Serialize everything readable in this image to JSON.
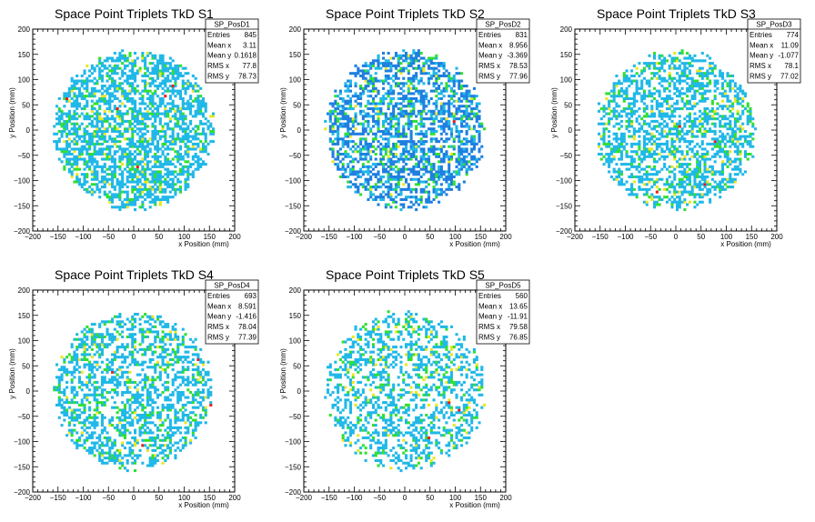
{
  "palette": {
    "light_blue": "#20b8e8",
    "blue": "#1f7fe0",
    "green": "#30e030",
    "yellow": "#e8e820",
    "red": "#f01818"
  },
  "chart_data": [
    {
      "type": "heatmap",
      "title": "Space Point Triplets TkD S1",
      "xlabel": "x Position (mm)",
      "ylabel": "y Position (mm)",
      "xlim": [
        -200,
        200
      ],
      "ylim": [
        -200,
        200
      ],
      "xticks": [
        -200,
        -150,
        -100,
        -50,
        0,
        50,
        100,
        150,
        200
      ],
      "yticks": [
        -200,
        -150,
        -100,
        -50,
        0,
        50,
        100,
        150,
        200
      ],
      "stats": {
        "name": "SP_PosD1",
        "rows": [
          [
            "Entries",
            "845"
          ],
          [
            "Mean x",
            "3.11"
          ],
          [
            "Mean y",
            "0.1618"
          ],
          [
            "RMS x",
            "77.8"
          ],
          [
            "RMS y",
            "78.73"
          ]
        ]
      },
      "hot_bins": [
        [
          -135,
          60
        ],
        [
          -35,
          40
        ],
        [
          60,
          65
        ],
        [
          75,
          85
        ],
        [
          5,
          -75
        ]
      ],
      "seed": 11
    },
    {
      "type": "heatmap",
      "title": "Space Point Triplets TkD S2",
      "xlabel": "x Position (mm)",
      "ylabel": "y Position (mm)",
      "xlim": [
        -200,
        200
      ],
      "ylim": [
        -200,
        200
      ],
      "xticks": [
        -200,
        -150,
        -100,
        -50,
        0,
        50,
        100,
        150,
        200
      ],
      "yticks": [
        -200,
        -150,
        -100,
        -50,
        0,
        50,
        100,
        150,
        200
      ],
      "stats": {
        "name": "SP_PosD2",
        "rows": [
          [
            "Entries",
            "831"
          ],
          [
            "Mean x",
            "8.956"
          ],
          [
            "Mean y",
            "-3.369"
          ],
          [
            "RMS x",
            "78.53"
          ],
          [
            "RMS y",
            "77.96"
          ]
        ]
      },
      "hot_bins": [
        [
          115,
          100
        ],
        [
          95,
          15
        ]
      ],
      "seed": 23
    },
    {
      "type": "heatmap",
      "title": "Space Point Triplets TkD S3",
      "xlabel": "x Position (mm)",
      "ylabel": "y Position (mm)",
      "xlim": [
        -200,
        200
      ],
      "ylim": [
        -200,
        200
      ],
      "xticks": [
        -200,
        -150,
        -100,
        -50,
        0,
        50,
        100,
        150,
        200
      ],
      "yticks": [
        -200,
        -150,
        -100,
        -50,
        0,
        50,
        100,
        150,
        200
      ],
      "stats": {
        "name": "SP_PosD3",
        "rows": [
          [
            "Entries",
            "774"
          ],
          [
            "Mean x",
            "11.09"
          ],
          [
            "Mean y",
            "-1.077"
          ],
          [
            "RMS x",
            "78.1"
          ],
          [
            "RMS y",
            "77.02"
          ]
        ]
      },
      "hot_bins": [
        [
          5,
          5
        ],
        [
          75,
          -25
        ],
        [
          -40,
          -125
        ],
        [
          55,
          -110
        ]
      ],
      "seed": 37
    },
    {
      "type": "heatmap",
      "title": "Space Point Triplets TkD S4",
      "xlabel": "x Position (mm)",
      "ylabel": "y Position (mm)",
      "xlim": [
        -200,
        200
      ],
      "ylim": [
        -200,
        200
      ],
      "xticks": [
        -200,
        -150,
        -100,
        -50,
        0,
        50,
        100,
        150,
        200
      ],
      "yticks": [
        -200,
        -150,
        -100,
        -50,
        0,
        50,
        100,
        150,
        200
      ],
      "stats": {
        "name": "SP_PosD4",
        "rows": [
          [
            "Entries",
            "693"
          ],
          [
            "Mean x",
            "8.591"
          ],
          [
            "Mean y",
            "-1.416"
          ],
          [
            "RMS x",
            "78.04"
          ],
          [
            "RMS y",
            "77.39"
          ]
        ]
      },
      "hot_bins": [
        [
          125,
          60
        ],
        [
          150,
          -30
        ],
        [
          15,
          -110
        ],
        [
          -45,
          35
        ]
      ],
      "seed": 53
    },
    {
      "type": "heatmap",
      "title": "Space Point Triplets TkD S5",
      "xlabel": "x Position (mm)",
      "ylabel": "y Position (mm)",
      "xlim": [
        -200,
        200
      ],
      "ylim": [
        -200,
        200
      ],
      "xticks": [
        -200,
        -150,
        -100,
        -50,
        0,
        50,
        100,
        150,
        200
      ],
      "yticks": [
        -200,
        -150,
        -100,
        -50,
        0,
        50,
        100,
        150,
        200
      ],
      "stats": {
        "name": "SP_PosD5",
        "rows": [
          [
            "Entries",
            "560"
          ],
          [
            "Mean x",
            "13.65"
          ],
          [
            "Mean y",
            "-11.91"
          ],
          [
            "RMS x",
            "79.58"
          ],
          [
            "RMS y",
            "76.85"
          ]
        ]
      },
      "hot_bins": [
        [
          85,
          -25
        ],
        [
          105,
          -40
        ],
        [
          45,
          -95
        ]
      ],
      "seed": 71
    }
  ]
}
